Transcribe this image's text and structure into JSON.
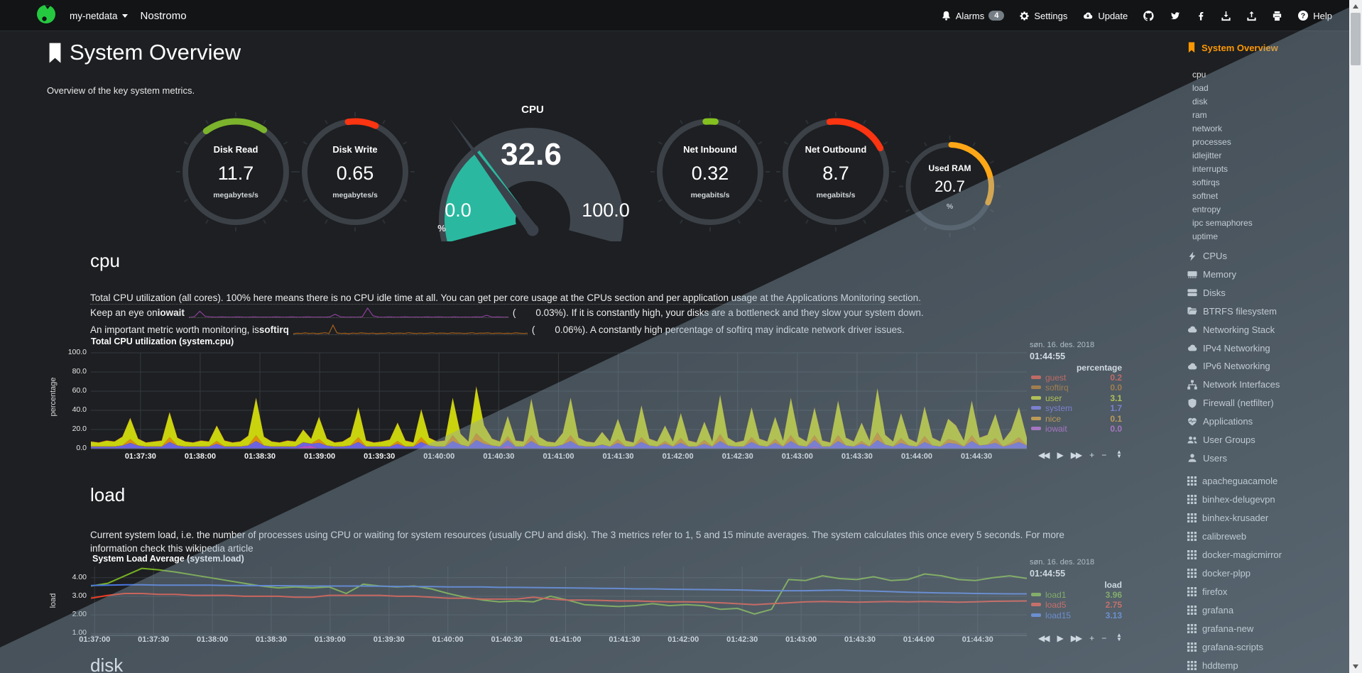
{
  "navbar": {
    "brand": "my-netdata",
    "hostname": "Nostromo",
    "alarms_label": "Alarms",
    "alarms_count": "4",
    "settings_label": "Settings",
    "update_label": "Update",
    "help_label": "Help"
  },
  "page": {
    "title": "System Overview",
    "subtitle": "Overview of the key system metrics."
  },
  "gauges": [
    {
      "id": "disk-read",
      "title": "Disk Read",
      "value": "11.7",
      "units": "megabytes/s",
      "arc_color": "#7cb32c",
      "arc_start": -36,
      "arc_end": 34
    },
    {
      "id": "disk-write",
      "title": "Disk Write",
      "value": "0.65",
      "units": "megabytes/s",
      "arc_color": "#fb3411",
      "arc_start": -8,
      "arc_end": 24
    },
    {
      "id": "net-inbound",
      "title": "Net Inbound",
      "value": "0.32",
      "units": "megabits/s",
      "arc_color": "#84c120",
      "arc_start": -5,
      "arc_end": 6
    },
    {
      "id": "net-outbound",
      "title": "Net Outbound",
      "value": "8.7",
      "units": "megabits/s",
      "arc_color": "#fb3411",
      "arc_start": -7,
      "arc_end": 62
    },
    {
      "id": "used-ram",
      "title": "Used RAM",
      "value": "20.7",
      "units": "%",
      "arc_color": "#ffa716",
      "arc_start": 2,
      "arc_end": 113
    }
  ],
  "cpu_gauge": {
    "title": "CPU",
    "value": "32.6",
    "min": "0.0",
    "max": "100.0",
    "units": "%",
    "percent": 32.6,
    "fill_color": "#2ab9a0",
    "dial_color": "#3f464e",
    "needle_color": "#3a414a"
  },
  "cpu_section": {
    "heading": "cpu",
    "p1": "Total CPU utilization (all cores). 100% here means there is no CPU idle time at all. You can get per core usage at the CPUs section and per application usage at the Applications Monitoring section.",
    "p2a": "Keep an eye on ",
    "p2b": "iowait",
    "p2c": "(",
    "p2_value": "0.03%",
    "p2d": "). If it is constantly high, your disks are a bottleneck and they slow your system down.",
    "p3a": "An important metric worth monitoring, is ",
    "p3b": "softirq",
    "p3c": "(",
    "p3_value": "0.06%",
    "p3d": "). A constantly high percentage of softirq may indicate network driver issues."
  },
  "load_section": {
    "heading": "load",
    "p1": "Current system load, i.e. the number of processes using CPU or waiting for system resources (usually CPU and disk). The 3 metrics refer to 1, 5 and 15 minute averages. The system calculates this once every 5 seconds. For more information check this wikipedia article"
  },
  "disk_section": {
    "heading": "disk"
  },
  "toolbar_glyphs": {
    "rewind": "◀◀",
    "play": "▶",
    "forward": "▶▶",
    "zoom_in": "+",
    "zoom_out": "−"
  },
  "charts": {
    "cpu": {
      "type": "stacked-area",
      "title": "Total CPU utilization (system.cpu)",
      "ylabel": "percentage",
      "legend_units": "percentage",
      "date": "søn. 16. des. 2018",
      "time": "01:44:55",
      "ylim": [
        0,
        100
      ],
      "axis": {
        "yticks": [
          "100.0",
          "80.0",
          "60.0",
          "40.0",
          "20.0",
          "0.0"
        ],
        "xticks": [
          "01:37:30",
          "01:38:00",
          "01:38:30",
          "01:39:00",
          "01:39:30",
          "01:40:00",
          "01:40:30",
          "01:41:00",
          "01:41:30",
          "01:42:00",
          "01:42:30",
          "01:43:00",
          "01:43:30",
          "01:44:00",
          "01:44:30"
        ],
        "first_tick_frac": 0.053,
        "tick_step_frac": 0.0638
      },
      "stack_order": [
        "iowait",
        "system",
        "nice",
        "user",
        "guest",
        "softirq"
      ],
      "series": [
        {
          "name": "guest",
          "color": "#e33f27",
          "value": "0.2",
          "data": 0.25
        },
        {
          "name": "softirq",
          "color": "#b05f00",
          "value": "0.0",
          "data": 0.05
        },
        {
          "name": "user",
          "color": "#c9d30e",
          "value": "3.1",
          "data": [
            5,
            4,
            6,
            5,
            9,
            22,
            7,
            4,
            5,
            6,
            26,
            8,
            5,
            4,
            6,
            5,
            16,
            6,
            4,
            5,
            10,
            39,
            9,
            5,
            4,
            6,
            5,
            13,
            5,
            23,
            7,
            4,
            5,
            9,
            31,
            6,
            4,
            5,
            7,
            19,
            6,
            4,
            29,
            8,
            5,
            6,
            39,
            11,
            5,
            49,
            16,
            7,
            5,
            21,
            6,
            5,
            38,
            9,
            5,
            4,
            12,
            39,
            8,
            5,
            4,
            13,
            5,
            21,
            6,
            4,
            33,
            7,
            5,
            16,
            5,
            26,
            6,
            4,
            19,
            5,
            41,
            8,
            4,
            6,
            31,
            7,
            5,
            23,
            6,
            39,
            9,
            5,
            29,
            6,
            4,
            36,
            8,
            5,
            19,
            6,
            46,
            10,
            5,
            26,
            7,
            4,
            31,
            8,
            5,
            21,
            16,
            6,
            36,
            8,
            10,
            25,
            6,
            13,
            31,
            8
          ]
        },
        {
          "name": "system",
          "color": "#6c63e0",
          "value": "1.7",
          "data": [
            2,
            2,
            2,
            2,
            3,
            6,
            3,
            2,
            2,
            2,
            7,
            3,
            2,
            2,
            2,
            2,
            5,
            2,
            2,
            2,
            3,
            8,
            3,
            2,
            2,
            2,
            2,
            4,
            2,
            6,
            3,
            2,
            2,
            3,
            7,
            2,
            2,
            2,
            2,
            5,
            2,
            2,
            7,
            3,
            2,
            2,
            8,
            4,
            2,
            9,
            5,
            3,
            2,
            6,
            2,
            2,
            8,
            3,
            2,
            2,
            4,
            8,
            3,
            2,
            2,
            4,
            2,
            6,
            2,
            2,
            7,
            3,
            2,
            5,
            2,
            6,
            2,
            2,
            5,
            2,
            8,
            3,
            2,
            2,
            7,
            3,
            2,
            6,
            2,
            8,
            3,
            2,
            7,
            2,
            2,
            8,
            3,
            2,
            5,
            2,
            9,
            4,
            2,
            6,
            3,
            2,
            7,
            3,
            2,
            6,
            5,
            2,
            8,
            3,
            4,
            6,
            2,
            4,
            7,
            3
          ]
        },
        {
          "name": "nice",
          "color": "#dd8f0e",
          "value": "0.1",
          "data": [
            0.3,
            0.3,
            0.3,
            0.3,
            0.3,
            4,
            0.3,
            0.3,
            0.3,
            0.3,
            5,
            0.3,
            0.3,
            0.3,
            0.3,
            0.3,
            3,
            0.3,
            0.3,
            0.3,
            0.3,
            6,
            0.3,
            0.3,
            0.3,
            0.3,
            0.3,
            0.3,
            0.3,
            4,
            0.3,
            0.3,
            0.3,
            0.3,
            5,
            0.3,
            0.3,
            0.3,
            0.3,
            3,
            0.3,
            0.3,
            5,
            0.3,
            0.3,
            0.3,
            6,
            0.3,
            0.3,
            7,
            3,
            0.3,
            0.3,
            4,
            0.3,
            0.3,
            6,
            0.3,
            0.3,
            0.3,
            0.3,
            6,
            0.3,
            0.3,
            0.3,
            0.3,
            0.3,
            4,
            0.3,
            0.3,
            5,
            0.3,
            0.3,
            3,
            0.3,
            5,
            0.3,
            0.3,
            4,
            0.3,
            7,
            0.3,
            0.3,
            0.3,
            5,
            0.3,
            0.3,
            4,
            0.3,
            6,
            0.3,
            0.3,
            5,
            0.3,
            0.3,
            6,
            0.3,
            0.3,
            3,
            0.3,
            8,
            0.3,
            0.3,
            5,
            0.3,
            0.3,
            6,
            0.3,
            0.3,
            4,
            3,
            0.3,
            6,
            0.3,
            0.3,
            5,
            0.3,
            2,
            5,
            0.3
          ]
        },
        {
          "name": "iowait",
          "color": "#b750c7",
          "value": "0.0",
          "data": [
            0.1,
            0.1,
            0.1,
            0.1,
            0.1,
            0.1,
            0.1,
            0.1,
            0.1,
            0.1,
            0.1,
            0.1,
            0.1,
            0.1,
            0.1,
            0.1,
            0.1,
            0.1,
            0.1,
            0.1,
            0.1,
            0.1,
            0.1,
            0.1,
            0.1,
            0.1,
            0.1,
            2.5,
            3,
            0.1,
            0.1,
            0.1,
            0.1,
            0.1,
            0.1,
            0.1,
            0.1,
            0.1,
            0.1,
            0.1,
            0.1,
            0.1,
            0.1,
            0.1,
            0.1,
            0.1,
            0.1,
            0.1,
            0.1,
            0.1,
            0.1,
            0.1,
            0.1,
            3,
            0.1,
            0.1,
            0.1,
            0.1,
            0.1,
            0.1,
            0.1,
            0.1,
            0.1,
            0.1,
            0.1,
            0.1,
            0.1,
            0.1,
            0.1,
            0.1,
            0.1,
            0.1,
            0.1,
            0.1,
            0.1,
            0.1,
            0.1,
            0.1,
            0.1,
            0.1,
            0.1,
            0.1,
            0.1,
            0.1,
            0.1,
            0.1,
            0.1,
            0.1,
            0.1,
            0.1,
            0.1,
            0.1,
            2,
            0.1,
            0.1,
            0.1,
            0.1,
            0.1,
            0.1,
            0.1,
            0.1,
            0.1,
            0.1,
            0.1,
            0.1,
            0.1,
            0.1,
            0.1,
            0.1,
            0.1,
            0.1,
            0.1,
            0.1,
            0.1,
            0.1,
            0.1,
            0.1,
            0.1,
            0.1,
            0.1
          ]
        }
      ]
    },
    "load": {
      "type": "line",
      "title": "System Load Average (system.load)",
      "ylabel": "load",
      "legend_units": "load",
      "date": "søn. 16. des. 2018",
      "time": "01:44:55",
      "ylim": [
        0.9,
        4.6
      ],
      "axis": {
        "yticks": [
          "4.00",
          "3.00",
          "2.00",
          "1.00"
        ],
        "yvals": [
          4,
          3,
          2,
          1
        ],
        "xticks": [
          "01:37:00",
          "01:37:30",
          "01:38:00",
          "01:38:30",
          "01:39:00",
          "01:39:30",
          "01:40:00",
          "01:40:30",
          "01:41:00",
          "01:41:30",
          "01:42:00",
          "01:42:30",
          "01:43:00",
          "01:43:30",
          "01:44:00",
          "01:44:30"
        ],
        "first_tick_frac": 0.004,
        "tick_step_frac": 0.0629
      },
      "series": [
        {
          "name": "load1",
          "color": "#76b024",
          "value": "3.96",
          "data": [
            3.55,
            3.7,
            4.1,
            4.5,
            4.42,
            4.3,
            4.15,
            4.0,
            3.85,
            3.7,
            3.55,
            3.45,
            3.5,
            3.45,
            3.5,
            3.15,
            3.65,
            3.55,
            3.5,
            3.55,
            3.4,
            3.15,
            2.95,
            2.8,
            2.7,
            2.75,
            2.7,
            3.0,
            2.8,
            2.55,
            2.5,
            2.45,
            2.5,
            2.6,
            2.5,
            2.55,
            2.5,
            2.3,
            2.35,
            2.05,
            2.3,
            3.9,
            3.85,
            4.1,
            3.95,
            3.9,
            4.05,
            3.85,
            3.9,
            4.2,
            4.1,
            3.9,
            3.85,
            4.0,
            4.1,
            3.96
          ]
        },
        {
          "name": "load5",
          "color": "#f03e24",
          "value": "2.75",
          "data": [
            2.9,
            3.05,
            3.15,
            3.15,
            3.1,
            3.1,
            3.05,
            3.05,
            3.05,
            3.0,
            3.0,
            3.0,
            2.95,
            2.95,
            3.05,
            3.05,
            3.05,
            3.05,
            3.0,
            3.0,
            2.95,
            2.9,
            2.9,
            2.85,
            2.85,
            2.85,
            2.95,
            2.85,
            2.8,
            2.8,
            2.78,
            2.75,
            2.75,
            2.72,
            2.7,
            2.7,
            2.68,
            2.65,
            2.6,
            2.55,
            2.6,
            2.65,
            2.7,
            2.72,
            2.7,
            2.68,
            2.7,
            2.72,
            2.7,
            2.72,
            2.7,
            2.68,
            2.7,
            2.73,
            2.74,
            2.75
          ]
        },
        {
          "name": "load15",
          "color": "#4a77e0",
          "value": "3.13",
          "data": [
            3.58,
            3.6,
            3.62,
            3.62,
            3.6,
            3.6,
            3.6,
            3.6,
            3.58,
            3.58,
            3.57,
            3.57,
            3.56,
            3.55,
            3.55,
            3.55,
            3.55,
            3.54,
            3.53,
            3.52,
            3.52,
            3.5,
            3.5,
            3.5,
            3.48,
            3.48,
            3.47,
            3.46,
            3.45,
            3.44,
            3.43,
            3.42,
            3.4,
            3.4,
            3.38,
            3.37,
            3.36,
            3.35,
            3.34,
            3.32,
            3.3,
            3.3,
            3.3,
            3.32,
            3.33,
            3.3,
            3.28,
            3.25,
            3.22,
            3.2,
            3.18,
            3.17,
            3.15,
            3.14,
            3.13,
            3.13
          ]
        }
      ]
    }
  },
  "sparklines": {
    "iowait": {
      "color": "#8b3f9b",
      "data": [
        0,
        0.05,
        0.6,
        0.1,
        0.05,
        0.02,
        0.04,
        0.03,
        0.02,
        0.05,
        0.03,
        0.02,
        0.04,
        0.02,
        0.03,
        0.02,
        0.05,
        0.03,
        0.02,
        0.04,
        0.02,
        0.03,
        0.05,
        0.02,
        0.03,
        0.02,
        0.04,
        0.3,
        0.05,
        0.02,
        0.03,
        0.02,
        0.05,
        0.9,
        0.15,
        0.03,
        0.02,
        0.04,
        0.02,
        0.03,
        0.05,
        0.02,
        0.03,
        0.02,
        0.04,
        0.02,
        0.05,
        0.03,
        0.02,
        0.04,
        0.02,
        0.03,
        0.02,
        0.05,
        0.03,
        0.2,
        0.02,
        0.04,
        0.02,
        0.03
      ]
    },
    "softirq": {
      "color": "#a5601c",
      "data": [
        0.04,
        0.06,
        0.05,
        0.08,
        0.05,
        0.07,
        0.04,
        0.06,
        0.09,
        0.05,
        0.5,
        0.08,
        0.05,
        0.06,
        0.04,
        0.07,
        0.05,
        0.08,
        0.06,
        0.05,
        0.07,
        0.04,
        0.06,
        0.05,
        0.08,
        0.05,
        0.06,
        0.07,
        0.05,
        0.09,
        0.06,
        0.05,
        0.07,
        0.05,
        0.06,
        0.08,
        0.05,
        0.07,
        0.06,
        0.05,
        0.08,
        0.06,
        0.07,
        0.05,
        0.06,
        0.09,
        0.05,
        0.07,
        0.06,
        0.08,
        0.05,
        0.06,
        0.07,
        0.05,
        0.06,
        0.05,
        0.08,
        0.06,
        0.05,
        0.06
      ]
    }
  },
  "sidebar": {
    "active_label": "System Overview",
    "submenu": [
      "cpu",
      "load",
      "disk",
      "ram",
      "network",
      "processes",
      "idlejitter",
      "interrupts",
      "softirqs",
      "softnet",
      "entropy",
      "ipc semaphores",
      "uptime"
    ],
    "sections": [
      {
        "icon": "bolt-icon",
        "label": "CPUs"
      },
      {
        "icon": "memory-icon",
        "label": "Memory"
      },
      {
        "icon": "disks-icon",
        "label": "Disks"
      },
      {
        "icon": "folder-icon",
        "label": "BTRFS filesystem"
      },
      {
        "icon": "cloud-icon",
        "label": "Networking Stack"
      },
      {
        "icon": "cloud-icon",
        "label": "IPv4 Networking"
      },
      {
        "icon": "cloud-icon",
        "label": "IPv6 Networking"
      },
      {
        "icon": "sitemap-icon",
        "label": "Network Interfaces"
      },
      {
        "icon": "shield-icon",
        "label": "Firewall (netfilter)"
      },
      {
        "icon": "heartbeat-icon",
        "label": "Applications"
      },
      {
        "icon": "user-group-icon",
        "label": "User Groups"
      },
      {
        "icon": "user-icon",
        "label": "Users"
      }
    ],
    "apps": [
      "apacheguacamole",
      "binhex-delugevpn",
      "binhex-krusader",
      "calibreweb",
      "docker-magicmirror",
      "docker-plpp",
      "firefox",
      "grafana",
      "grafana-new",
      "grafana-scripts",
      "hddtemp"
    ]
  }
}
